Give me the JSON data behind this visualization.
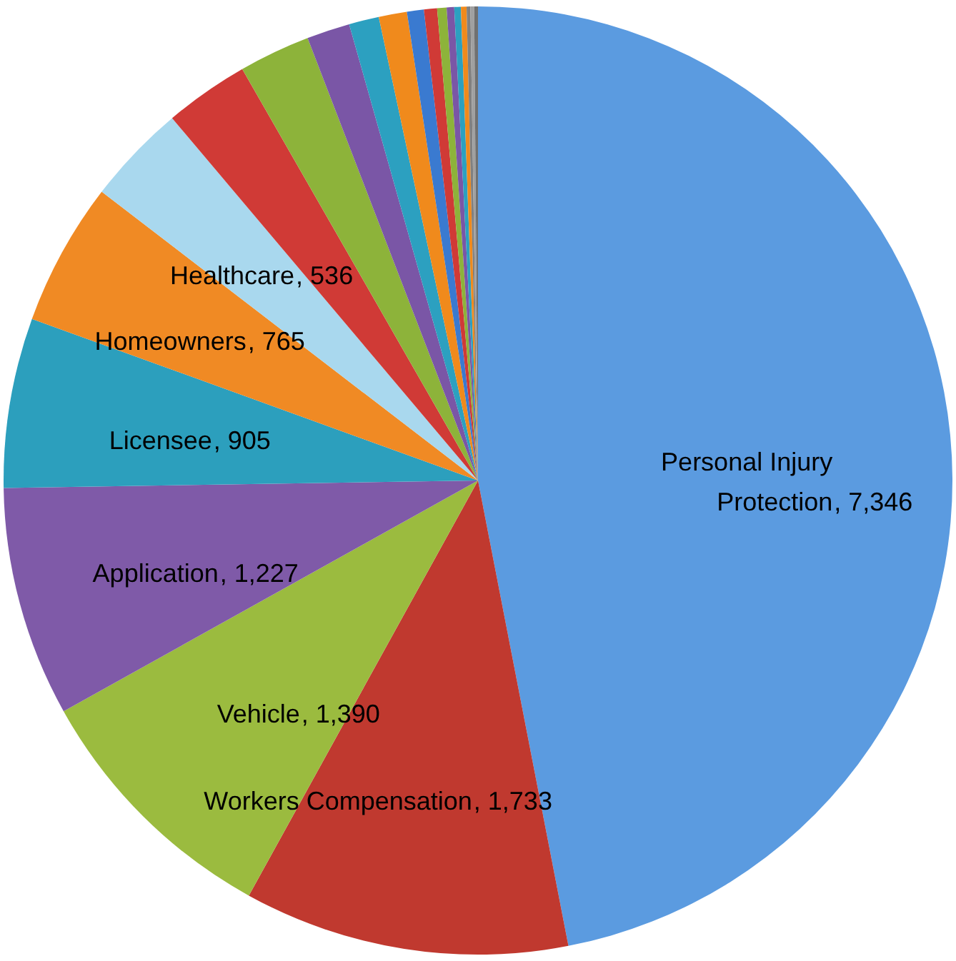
{
  "chart_data": {
    "type": "pie",
    "categories": [
      "Personal Injury Protection",
      "Workers Compensation ",
      "Vehicle ",
      "Application ",
      "Licensee ",
      "Homeowners",
      "Healthcare",
      null,
      null,
      null,
      null,
      null,
      null,
      null,
      null,
      null,
      null,
      null,
      null,
      null,
      null
    ],
    "values": [
      7346,
      1733,
      1390,
      1227,
      905,
      765,
      536,
      450,
      380,
      230,
      160,
      150,
      90,
      70,
      50,
      40,
      35,
      30,
      20,
      20,
      20
    ],
    "value_labels": [
      ", 7,346",
      ", 1,733",
      ", 1,390",
      ", 1,227",
      ", 905",
      ", 765",
      ", 536",
      null,
      null,
      null,
      null,
      null,
      null,
      null,
      null,
      null,
      null,
      null,
      null,
      null,
      null
    ],
    "colors": [
      "#5b9be0",
      "#c0392f",
      "#9bbb3f",
      "#7f5aa8",
      "#2c9fbd",
      "#f08a24",
      "#a9d8ee",
      "#d03a36",
      "#8db33a",
      "#7a56a6",
      "#2ca0c0",
      "#f08a1c",
      "#3a7ad0",
      "#d03a36",
      "#8db33a",
      "#7a56a6",
      "#2ca0c0",
      "#f08a1c",
      "#808080",
      "#a0a0a0",
      "#707070"
    ],
    "legend": false
  }
}
